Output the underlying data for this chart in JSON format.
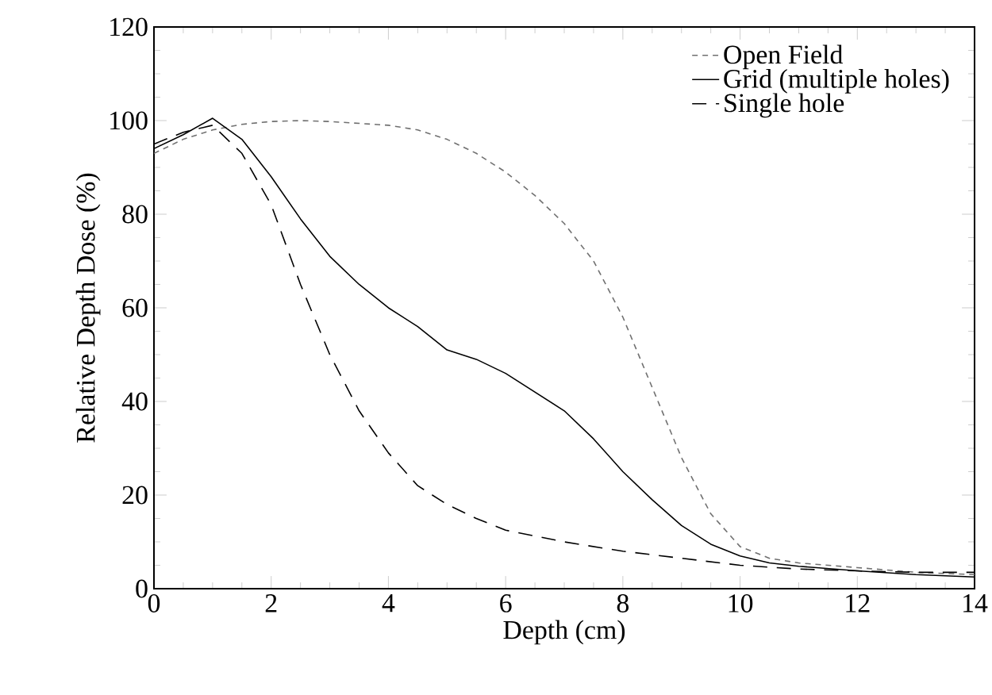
{
  "chart_data": {
    "type": "line",
    "xlabel": "Depth (cm)",
    "ylabel": "Relative Depth Dose (%)",
    "xlim": [
      0,
      14
    ],
    "ylim": [
      0,
      120
    ],
    "xticks": [
      0,
      2,
      4,
      6,
      8,
      10,
      12,
      14
    ],
    "yticks": [
      0,
      20,
      40,
      60,
      80,
      100,
      120
    ],
    "legend": "top right",
    "grid": false,
    "series": [
      {
        "name": "Open Field",
        "color": "#707070",
        "line_style": "dotted",
        "x": [
          0,
          0.5,
          1,
          1.5,
          2,
          2.5,
          3,
          4,
          4.5,
          5,
          5.5,
          6,
          6.5,
          7,
          7.5,
          8,
          8.5,
          9,
          9.5,
          10,
          10.5,
          11,
          12,
          13,
          14
        ],
        "values": [
          93,
          96,
          98,
          99.2,
          99.8,
          100,
          99.8,
          99,
          98,
          96,
          93,
          89,
          84,
          78,
          70,
          58,
          43,
          28,
          16,
          9,
          6.5,
          5.5,
          4.5,
          3.5,
          3
        ]
      },
      {
        "name": "Grid (multiple holes)",
        "color": "#000000",
        "line_style": "solid",
        "x": [
          0,
          0.5,
          1,
          1.5,
          2,
          2.5,
          3,
          3.5,
          4,
          4.5,
          5,
          5.5,
          6,
          6.5,
          7,
          7.5,
          8,
          8.5,
          9,
          9.5,
          10,
          10.5,
          11,
          12,
          13,
          14
        ],
        "values": [
          94,
          97,
          100.5,
          96,
          88,
          79,
          71,
          65,
          60,
          56,
          51,
          49,
          46,
          42,
          38,
          32,
          25,
          19,
          13.5,
          9.5,
          7,
          5.5,
          4.8,
          3.8,
          3,
          2.5
        ]
      },
      {
        "name": "Single hole",
        "color": "#000000",
        "line_style": "dashed",
        "x": [
          0,
          0.5,
          1,
          1.5,
          2,
          2.5,
          3,
          3.5,
          4,
          4.5,
          5,
          5.5,
          6,
          7,
          8,
          9,
          10,
          11,
          12,
          13,
          14
        ],
        "values": [
          95,
          97.5,
          99,
          93,
          82,
          65,
          50,
          38,
          29,
          22,
          18,
          15,
          12.5,
          10,
          8,
          6.5,
          5,
          4.2,
          3.8,
          3.5,
          3.5
        ]
      }
    ]
  }
}
